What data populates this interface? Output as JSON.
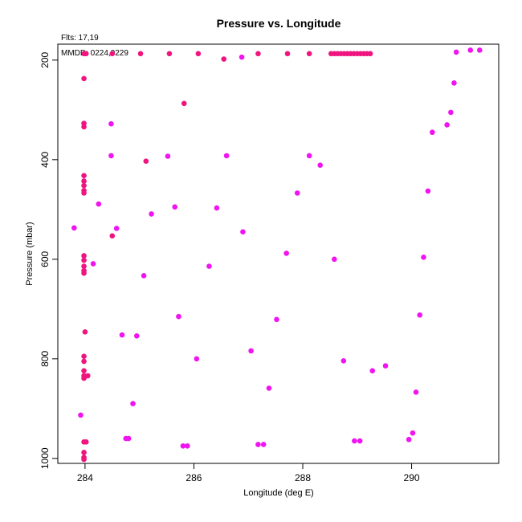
{
  "chart_data": {
    "type": "scatter",
    "title": "Pressure vs. Longitude",
    "xlabel": "Longitude (deg E)",
    "ylabel": "Pressure (mbar)",
    "annotations": [
      "Flts: 17,19",
      "MMDD: 0224,0229"
    ],
    "xlim": [
      283.5,
      291.6
    ],
    "ylim": [
      1010,
      168
    ],
    "y_reversed": true,
    "x_ticks": [
      284,
      286,
      288,
      290
    ],
    "y_ticks": [
      200,
      400,
      600,
      800,
      1000
    ],
    "grid": false,
    "legend": "none",
    "series": [
      {
        "color": "#f0147e",
        "points": [
          [
            283.98,
            187
          ],
          [
            284.02,
            187
          ],
          [
            284.5,
            187
          ],
          [
            285.02,
            187
          ],
          [
            285.55,
            187
          ],
          [
            286.08,
            187
          ],
          [
            287.18,
            187
          ],
          [
            287.72,
            187
          ],
          [
            288.12,
            187
          ],
          [
            288.52,
            187
          ],
          [
            288.58,
            187
          ],
          [
            288.64,
            187
          ],
          [
            288.7,
            187
          ],
          [
            288.76,
            187
          ],
          [
            288.82,
            187
          ],
          [
            288.88,
            187
          ],
          [
            288.94,
            187
          ],
          [
            289.0,
            187
          ],
          [
            289.06,
            187
          ],
          [
            289.12,
            187
          ],
          [
            289.18,
            187
          ],
          [
            289.24,
            187
          ],
          [
            286.55,
            198
          ],
          [
            283.98,
            237
          ],
          [
            285.82,
            287
          ],
          [
            283.98,
            327
          ],
          [
            283.98,
            334
          ],
          [
            285.12,
            403
          ],
          [
            283.98,
            432
          ],
          [
            283.98,
            443
          ],
          [
            283.98,
            452
          ],
          [
            283.98,
            462
          ],
          [
            283.98,
            467
          ],
          [
            284.5,
            553
          ],
          [
            283.98,
            593
          ],
          [
            283.98,
            602
          ],
          [
            283.98,
            614
          ],
          [
            283.98,
            623
          ],
          [
            283.98,
            628
          ],
          [
            284.0,
            746
          ],
          [
            283.98,
            795
          ],
          [
            283.98,
            805
          ],
          [
            283.98,
            824
          ],
          [
            283.98,
            834
          ],
          [
            283.98,
            839
          ],
          [
            284.05,
            834
          ],
          [
            283.98,
            967
          ],
          [
            284.02,
            967
          ],
          [
            283.98,
            988
          ],
          [
            283.98,
            998
          ],
          [
            283.98,
            1002
          ]
        ]
      },
      {
        "color": "#f014f0",
        "points": [
          [
            283.8,
            537
          ],
          [
            284.25,
            489
          ],
          [
            284.15,
            609
          ],
          [
            284.48,
            328
          ],
          [
            284.48,
            392
          ],
          [
            284.58,
            538
          ],
          [
            284.68,
            752
          ],
          [
            284.95,
            754
          ],
          [
            285.08,
            633
          ],
          [
            285.22,
            509
          ],
          [
            285.52,
            393
          ],
          [
            285.65,
            495
          ],
          [
            285.72,
            715
          ],
          [
            286.05,
            800
          ],
          [
            286.28,
            614
          ],
          [
            286.42,
            497
          ],
          [
            286.6,
            392
          ],
          [
            286.88,
            194
          ],
          [
            286.9,
            545
          ],
          [
            287.05,
            784
          ],
          [
            287.38,
            859
          ],
          [
            287.52,
            721
          ],
          [
            287.7,
            588
          ],
          [
            287.9,
            467
          ],
          [
            288.12,
            392
          ],
          [
            288.32,
            411
          ],
          [
            288.58,
            600
          ],
          [
            288.75,
            804
          ],
          [
            289.28,
            824
          ],
          [
            289.52,
            814
          ],
          [
            290.08,
            867
          ],
          [
            290.15,
            712
          ],
          [
            290.22,
            596
          ],
          [
            290.3,
            463
          ],
          [
            290.38,
            345
          ],
          [
            290.65,
            330
          ],
          [
            290.72,
            305
          ],
          [
            290.78,
            246
          ],
          [
            290.82,
            184
          ],
          [
            291.08,
            180
          ],
          [
            291.25,
            180
          ],
          [
            284.88,
            890
          ],
          [
            283.92,
            913
          ],
          [
            284.75,
            960
          ],
          [
            284.8,
            960
          ],
          [
            285.8,
            975
          ],
          [
            285.88,
            975
          ],
          [
            287.18,
            972
          ],
          [
            287.28,
            972
          ],
          [
            288.95,
            965
          ],
          [
            289.05,
            965
          ],
          [
            289.95,
            962
          ],
          [
            290.02,
            949
          ]
        ]
      }
    ]
  }
}
